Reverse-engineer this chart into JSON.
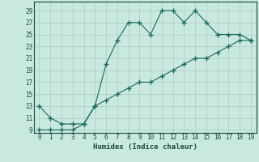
{
  "xlabel": "Humidex (Indice chaleur)",
  "bg_color": "#c8e8e0",
  "grid_color": "#b0d0c8",
  "line_color": "#1a6b5a",
  "line1_x": [
    0,
    1,
    2,
    3,
    4,
    5,
    6,
    7,
    8,
    9,
    10,
    11,
    12,
    13,
    14,
    15,
    16,
    17,
    18,
    19
  ],
  "line1_y": [
    13,
    11,
    10,
    10,
    10,
    13,
    20,
    24,
    27,
    27,
    25,
    29,
    29,
    27,
    29,
    27,
    25,
    25,
    25,
    24
  ],
  "line2_x": [
    0,
    1,
    2,
    3,
    4,
    5,
    6,
    7,
    8,
    9,
    10,
    11,
    12,
    13,
    14,
    15,
    16,
    17,
    18,
    19
  ],
  "line2_y": [
    9,
    9,
    9,
    9,
    10,
    13,
    14,
    15,
    16,
    17,
    17,
    18,
    19,
    20,
    21,
    21,
    22,
    23,
    24,
    24
  ],
  "xlim": [
    -0.5,
    19.5
  ],
  "ylim": [
    8.5,
    30.5
  ],
  "xticks": [
    0,
    1,
    2,
    3,
    4,
    5,
    6,
    7,
    8,
    9,
    10,
    11,
    12,
    13,
    14,
    15,
    16,
    17,
    18,
    19
  ],
  "yticks": [
    9,
    11,
    13,
    15,
    17,
    19,
    21,
    23,
    25,
    27,
    29
  ]
}
